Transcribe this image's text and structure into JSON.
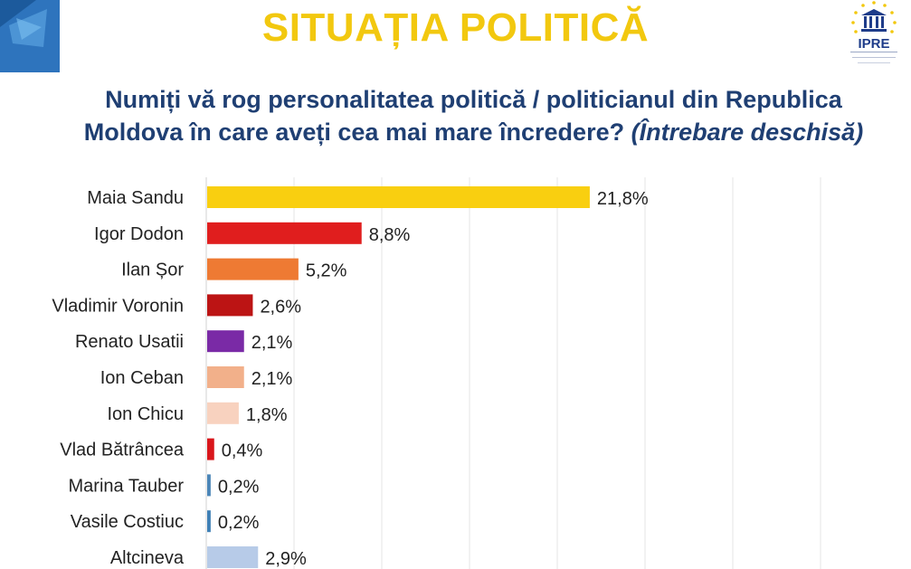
{
  "header": {
    "title": "SITUAȚIA POLITICĂ",
    "question_line1": "Numiți vă rog personalitatea politică / politicianul din Republica",
    "question_line2": "Moldova în care aveți cea mai mare încredere? ",
    "question_note": "(Întrebare deschisă)"
  },
  "logo": {
    "name": "IPRE",
    "icon": "building-with-stars-icon",
    "eu_icon": "eu-flag-icon"
  },
  "chart_data": {
    "type": "bar",
    "orientation": "horizontal",
    "categories": [
      "Maia Sandu",
      "Igor Dodon",
      "Ilan Șor",
      "Vladimir Voronin",
      "Renato Usatii",
      "Ion Ceban",
      "Ion Chicu",
      "Vlad Bătrâncea",
      "Marina Tauber",
      "Vasile Costiuc",
      "Altcineva"
    ],
    "values": [
      21.8,
      8.8,
      5.2,
      2.6,
      2.1,
      2.1,
      1.8,
      0.4,
      0.2,
      0.2,
      2.9
    ],
    "value_labels": [
      "21,8%",
      "8,8%",
      "5,2%",
      "2,6%",
      "2,1%",
      "2,1%",
      "1,8%",
      "0,4%",
      "0,2%",
      "0,2%",
      "2,9%"
    ],
    "colors": [
      "#f9cf10",
      "#e01e1e",
      "#ee7a33",
      "#bc1414",
      "#7a2aa6",
      "#f2b08a",
      "#f8d2bf",
      "#d9161b",
      "#4b86b8",
      "#3f80b6",
      "#b7cbe8"
    ],
    "xlim": [
      0,
      40
    ],
    "grid": true,
    "title": "",
    "xlabel": "",
    "ylabel": ""
  }
}
